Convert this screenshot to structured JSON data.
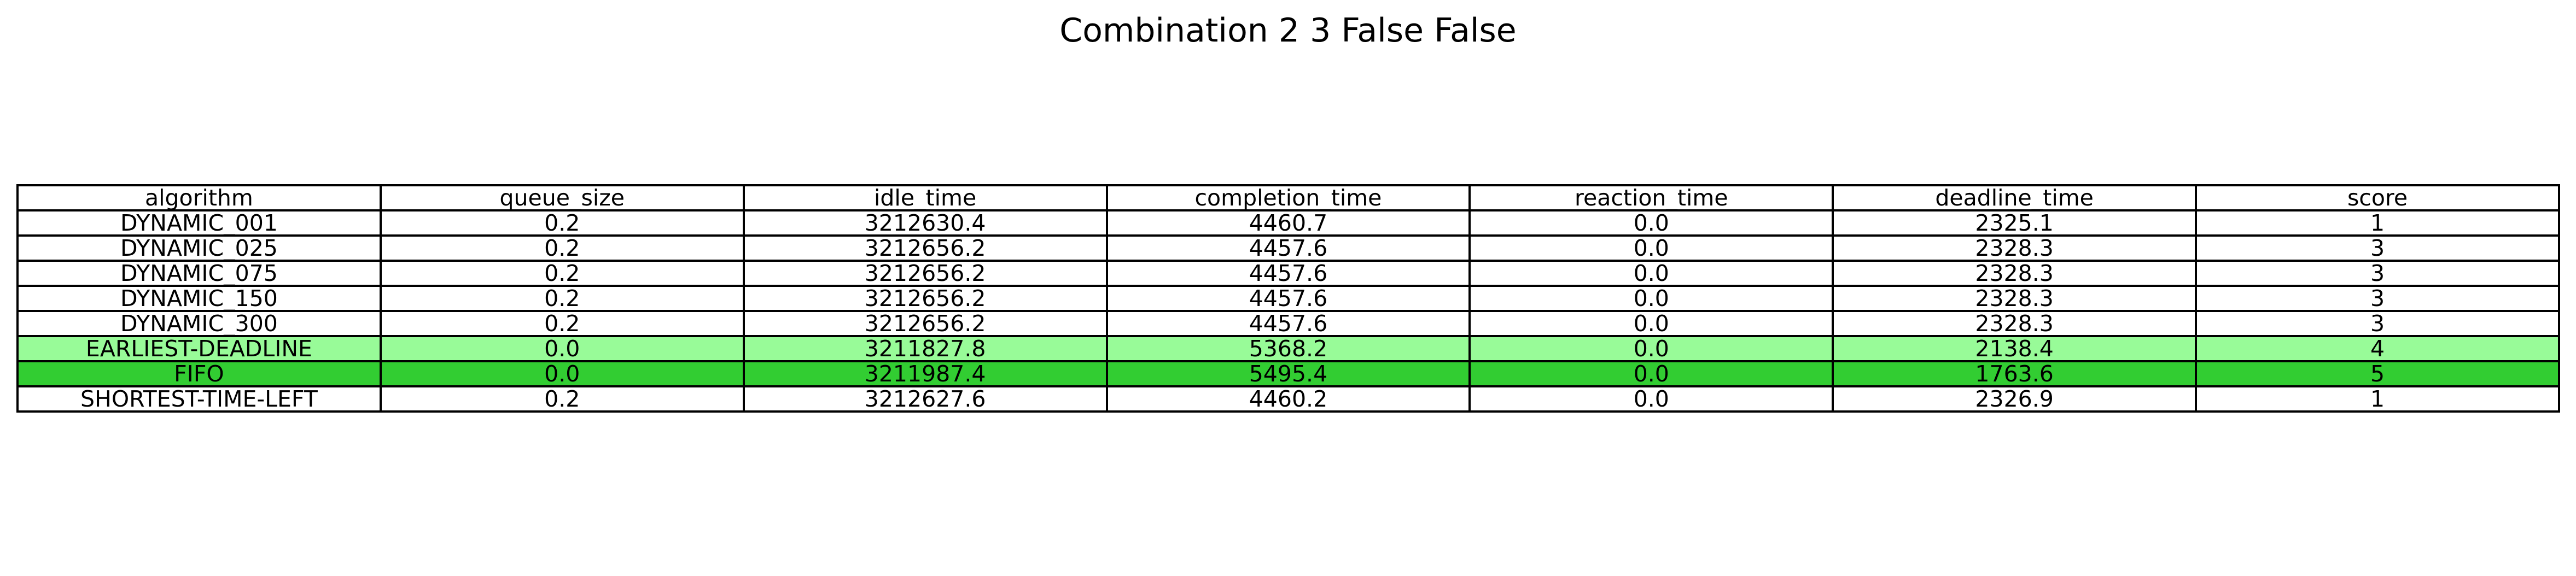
{
  "chart_data": {
    "type": "table",
    "title": "Combination 2 3 False False",
    "columns": [
      "algorithm",
      "queue_size",
      "idle_time",
      "completion_time",
      "reaction_time",
      "deadline_time",
      "score"
    ],
    "rows": [
      {
        "cells": [
          "DYNAMIC_001",
          "0.2",
          "3212630.4",
          "4460.7",
          "0.0",
          "2325.1",
          "1"
        ],
        "highlight": "#ffffff"
      },
      {
        "cells": [
          "DYNAMIC_025",
          "0.2",
          "3212656.2",
          "4457.6",
          "0.0",
          "2328.3",
          "3"
        ],
        "highlight": "#ffffff"
      },
      {
        "cells": [
          "DYNAMIC_075",
          "0.2",
          "3212656.2",
          "4457.6",
          "0.0",
          "2328.3",
          "3"
        ],
        "highlight": "#ffffff"
      },
      {
        "cells": [
          "DYNAMIC_150",
          "0.2",
          "3212656.2",
          "4457.6",
          "0.0",
          "2328.3",
          "3"
        ],
        "highlight": "#ffffff"
      },
      {
        "cells": [
          "DYNAMIC_300",
          "0.2",
          "3212656.2",
          "4457.6",
          "0.0",
          "2328.3",
          "3"
        ],
        "highlight": "#ffffff"
      },
      {
        "cells": [
          "EARLIEST-DEADLINE",
          "0.0",
          "3211827.8",
          "5368.2",
          "0.0",
          "2138.4",
          "4"
        ],
        "highlight": "#98fb98"
      },
      {
        "cells": [
          "FIFO",
          "0.0",
          "3211987.4",
          "5495.4",
          "0.0",
          "1763.6",
          "5"
        ],
        "highlight": "#32cd32"
      },
      {
        "cells": [
          "SHORTEST-TIME-LEFT",
          "0.2",
          "3212627.6",
          "4460.2",
          "0.0",
          "2326.9",
          "1"
        ],
        "highlight": "#ffffff"
      }
    ]
  }
}
